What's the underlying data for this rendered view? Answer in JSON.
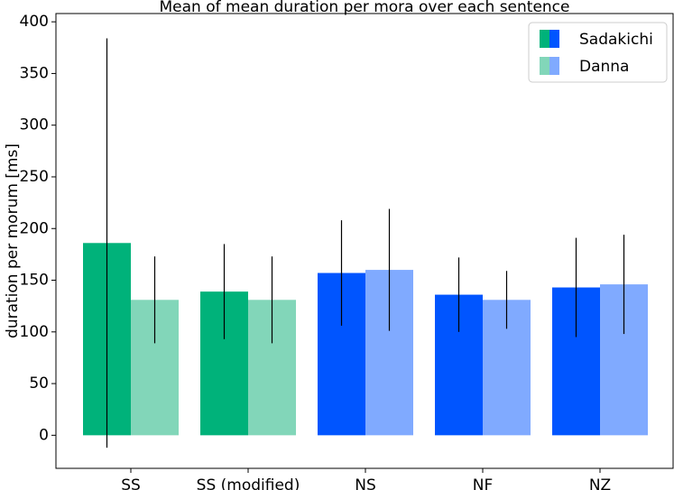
{
  "chart_data": {
    "type": "bar",
    "title": "Mean of mean duration per mora over each sentence",
    "ylabel": "duration per morum [ms]",
    "categories": [
      "SS",
      "SS (modified)",
      "NS",
      "NF",
      "NZ"
    ],
    "series": [
      {
        "name": "Sadakichi",
        "colors": [
          "#00b27a",
          "#00b27a",
          "#0055ff",
          "#0055ff",
          "#0055ff"
        ],
        "values": [
          186,
          139,
          157,
          136,
          143
        ],
        "errors": [
          198,
          46,
          51,
          36,
          48
        ]
      },
      {
        "name": "Danna",
        "colors": [
          "#82d6b9",
          "#82d6b9",
          "#80aaff",
          "#80aaff",
          "#80aaff"
        ],
        "values": [
          131,
          131,
          160,
          131,
          146
        ],
        "errors": [
          42,
          42,
          59,
          28,
          48
        ]
      }
    ],
    "ylim": [
      -32,
      408
    ],
    "yticks": [
      0,
      50,
      100,
      150,
      200,
      250,
      300,
      350,
      400
    ],
    "grid": false,
    "legend": "upper right"
  }
}
